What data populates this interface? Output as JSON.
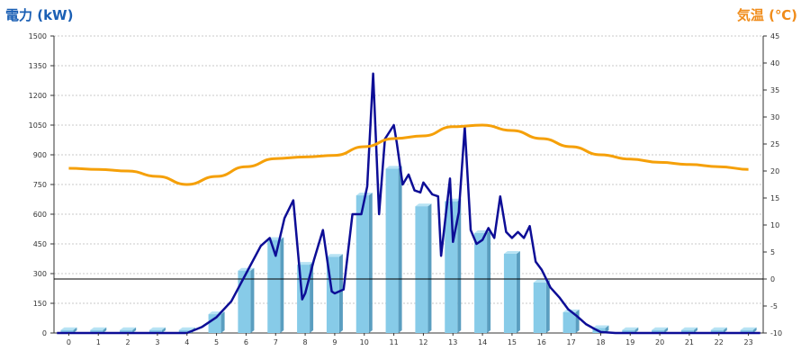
{
  "chart_data": {
    "type": "bar",
    "left_axis_title": "電力 (kW)",
    "right_axis_title": "気温 (℃)",
    "categories": [
      "0",
      "1",
      "2",
      "3",
      "4",
      "5",
      "6",
      "7",
      "8",
      "9",
      "10",
      "11",
      "12",
      "13",
      "14",
      "15",
      "16",
      "17",
      "18",
      "19",
      "20",
      "21",
      "22",
      "23"
    ],
    "left_ticks": [
      "0",
      "150",
      "300",
      "450",
      "600",
      "750",
      "900",
      "1050",
      "1200",
      "1350",
      "1500"
    ],
    "right_ticks": [
      "-10",
      "-5",
      "0",
      "5",
      "10",
      "15",
      "20",
      "25",
      "30",
      "35",
      "40",
      "45"
    ],
    "ylim_left": [
      0,
      1500
    ],
    "ylim_right": [
      -10,
      45
    ],
    "grid": true,
    "series": [
      {
        "kind": "bar",
        "axis": "left",
        "values": [
          15,
          15,
          15,
          15,
          15,
          95,
          315,
          470,
          345,
          385,
          695,
          830,
          640,
          665,
          505,
          400,
          255,
          105,
          25,
          15,
          15,
          15,
          15,
          15
        ]
      },
      {
        "kind": "line",
        "axis": "left",
        "x": [
          -0.4,
          0,
          1,
          2,
          3,
          4,
          4.5,
          5,
          5.5,
          6,
          6.5,
          6.8,
          7,
          7.3,
          7.6,
          7.9,
          8,
          8.3,
          8.6,
          8.9,
          9,
          9.3,
          9.6,
          9.9,
          10.1,
          10.3,
          10.5,
          10.7,
          11,
          11.1,
          11.3,
          11.5,
          11.7,
          11.9,
          12,
          12.3,
          12.5,
          12.6,
          12.9,
          13,
          13.2,
          13.4,
          13.6,
          13.8,
          14,
          14.2,
          14.4,
          14.6,
          14.8,
          15,
          15.2,
          15.4,
          15.6,
          15.8,
          16,
          16.3,
          16.6,
          16.9,
          17.2,
          17.5,
          17.8,
          18,
          18.5,
          19,
          20,
          21,
          22,
          23,
          23.4
        ],
        "values": [
          0,
          0,
          0,
          0,
          0,
          0,
          30,
          80,
          160,
          300,
          440,
          480,
          390,
          580,
          670,
          170,
          200,
          370,
          520,
          210,
          200,
          220,
          600,
          600,
          740,
          1310,
          600,
          980,
          1050,
          960,
          750,
          800,
          720,
          710,
          760,
          700,
          690,
          390,
          780,
          460,
          610,
          1040,
          520,
          450,
          470,
          530,
          480,
          690,
          510,
          480,
          510,
          480,
          540,
          360,
          320,
          230,
          180,
          120,
          85,
          45,
          20,
          5,
          0,
          0,
          0,
          0,
          0,
          0,
          0
        ]
      },
      {
        "kind": "line",
        "axis": "right",
        "x": [
          0,
          1,
          2,
          3,
          4,
          5,
          6,
          7,
          8,
          9,
          10,
          11,
          12,
          13,
          14,
          15,
          16,
          17,
          18,
          19,
          20,
          21,
          22,
          23
        ],
        "values": [
          20.5,
          20.3,
          20.0,
          19.0,
          17.5,
          19.0,
          20.8,
          22.3,
          22.6,
          22.9,
          24.5,
          26.0,
          26.5,
          28.2,
          28.5,
          27.5,
          26.0,
          24.5,
          23.0,
          22.2,
          21.6,
          21.2,
          20.8,
          20.3
        ]
      }
    ]
  },
  "colors": {
    "bar_face": "#87cbe8",
    "bar_side": "#5a9ec0",
    "bar_top": "#b7e3f4",
    "power_line": "#0d0d96",
    "temp_line": "#f5a009",
    "grid": "#c8c8c8",
    "zero_line": "#000000",
    "left_title": "#1a5fb4",
    "right_title": "#f08c1a"
  }
}
